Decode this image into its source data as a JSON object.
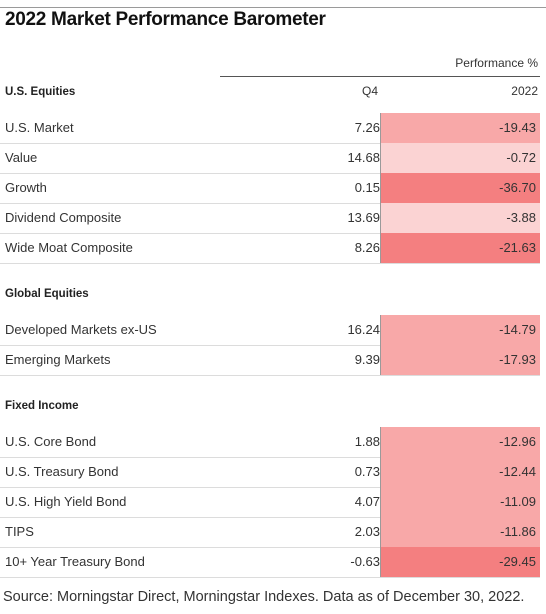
{
  "title": "2022 Market Performance Barometer",
  "performance_header": "Performance %",
  "columns": {
    "q4": "Q4",
    "y2022": "2022"
  },
  "sections": [
    {
      "label": "U.S. Equities",
      "rows": [
        {
          "name": "U.S. Market",
          "q4": "7.26",
          "y2022": "-19.43",
          "y2022_value": -19.43
        },
        {
          "name": "Value",
          "q4": "14.68",
          "y2022": "-0.72",
          "y2022_value": -0.72
        },
        {
          "name": "Growth",
          "q4": "0.15",
          "y2022": "-36.70",
          "y2022_value": -36.7
        },
        {
          "name": "Dividend Composite",
          "q4": "13.69",
          "y2022": "-3.88",
          "y2022_value": -3.88
        },
        {
          "name": "Wide Moat Composite",
          "q4": "8.26",
          "y2022": "-21.63",
          "y2022_value": -21.63
        }
      ]
    },
    {
      "label": "Global Equities",
      "rows": [
        {
          "name": "Developed Markets ex-US",
          "q4": "16.24",
          "y2022": "-14.79",
          "y2022_value": -14.79
        },
        {
          "name": "Emerging Markets",
          "q4": "9.39",
          "y2022": "-17.93",
          "y2022_value": -17.93
        }
      ]
    },
    {
      "label": "Fixed Income",
      "rows": [
        {
          "name": "U.S. Core Bond",
          "q4": "1.88",
          "y2022": "-12.96",
          "y2022_value": -12.96
        },
        {
          "name": "U.S. Treasury Bond",
          "q4": "0.73",
          "y2022": "-12.44",
          "y2022_value": -12.44
        },
        {
          "name": "U.S. High Yield Bond",
          "q4": "4.07",
          "y2022": "-11.09",
          "y2022_value": -11.09
        },
        {
          "name": "TIPS",
          "q4": "2.03",
          "y2022": "-11.86",
          "y2022_value": -11.86
        },
        {
          "name": "10+ Year Treasury Bond",
          "q4": "-0.63",
          "y2022": "-29.45",
          "y2022_value": -29.45
        }
      ]
    }
  ],
  "source": "Source: Morningstar Direct, Morningstar Indexes. Data as of December 30, 2022.",
  "colors": {
    "strong_negative": "#f47f80",
    "medium_negative": "#f8a8a8",
    "light_negative": "#fbd3d3"
  }
}
